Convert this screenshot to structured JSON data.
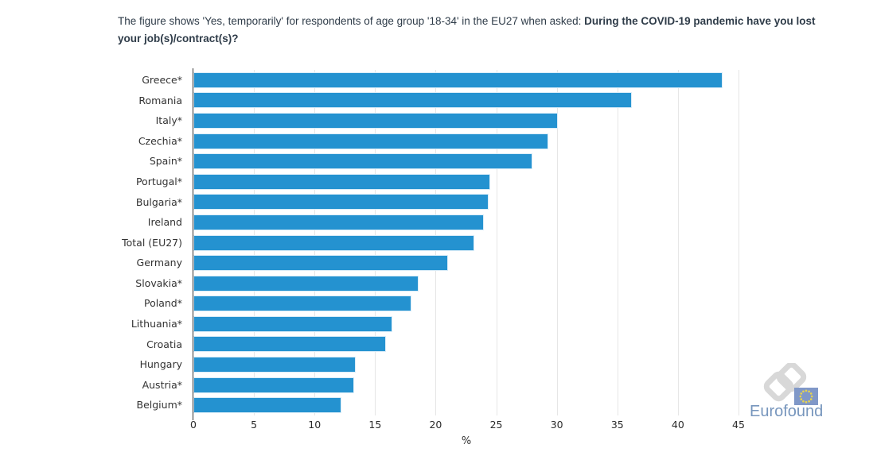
{
  "header": {
    "text_regular": "The figure shows 'Yes, temporarily' for respondents of age group '18-34' in the EU27 when asked: ",
    "text_bold": "During the COVID-19 pandemic have you lost your job(s)/contract(s)?"
  },
  "chart_data": {
    "type": "bar",
    "orientation": "horizontal",
    "categories": [
      "Greece*",
      "Romania",
      "Italy*",
      "Czechia*",
      "Spain*",
      "Portugal*",
      "Bulgaria*",
      "Ireland",
      "Total (EU27)",
      "Germany",
      "Slovakia*",
      "Poland*",
      "Lithuania*",
      "Croatia",
      "Hungary",
      "Austria*",
      "Belgium*"
    ],
    "values": [
      43.7,
      36.2,
      30.1,
      29.3,
      28.0,
      24.5,
      24.4,
      24.0,
      23.2,
      21.0,
      18.6,
      18.0,
      16.4,
      15.9,
      13.4,
      13.3,
      12.2
    ],
    "title": "",
    "xlabel": "%",
    "ylabel": "",
    "xlim": [
      0,
      45
    ],
    "xticks": [
      0,
      5,
      10,
      15,
      20,
      25,
      30,
      35,
      40,
      45
    ],
    "grid": "vertical-light-gray",
    "legend": "none",
    "bar_color": "#2492d0",
    "bar_border_color": "#d9ecf8",
    "gridline_color": "#e6e6e6",
    "axis_line_color": "#333333"
  },
  "logo": {
    "brand": "Eurofound",
    "symbol": "chain-links-with-eu-flag",
    "text_color": "#7796bd",
    "link_color": "#d8d8d8",
    "flag_color": "#8098c8",
    "star_color": "#e8d44d"
  }
}
